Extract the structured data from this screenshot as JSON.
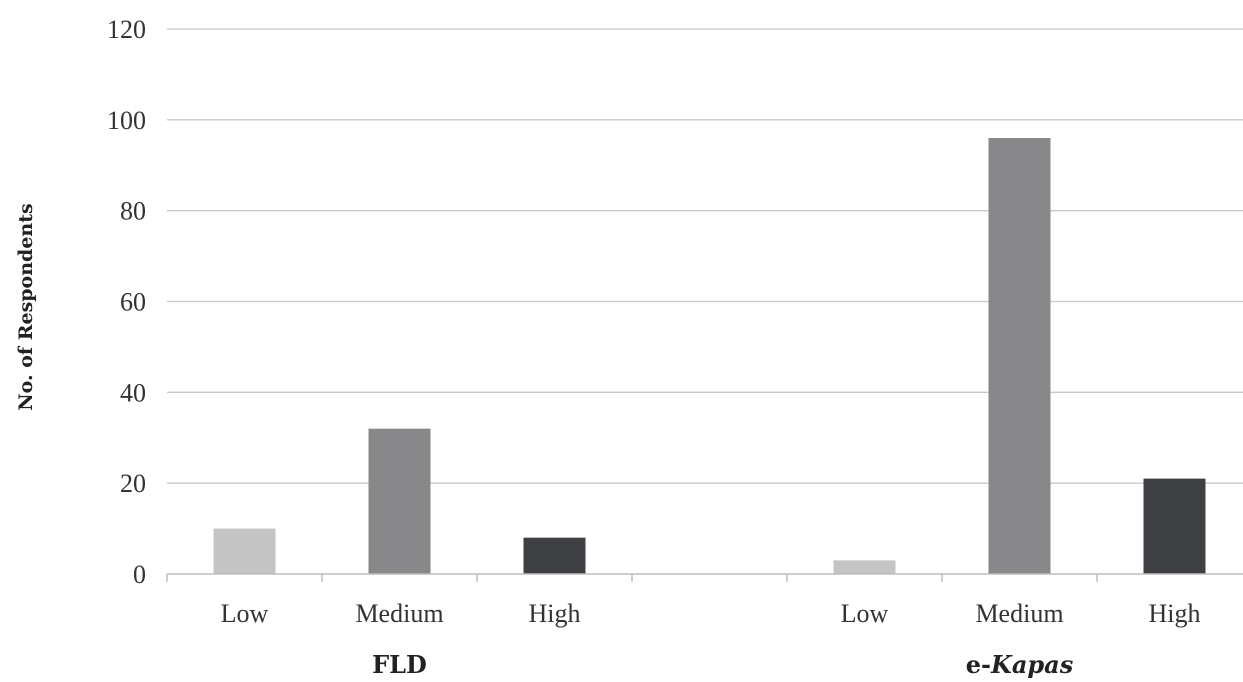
{
  "chart_data": {
    "type": "bar",
    "ylabel": "No. of Respondents",
    "ylim": [
      0,
      120
    ],
    "yticks": [
      0,
      20,
      40,
      60,
      80,
      100,
      120
    ],
    "grid": true,
    "groups": [
      {
        "label_parts": [
          {
            "text": "FLD",
            "italic": false
          }
        ],
        "categories": [
          "Low",
          "Medium",
          "High"
        ],
        "values": [
          10,
          32,
          8
        ]
      },
      {
        "label_parts": [
          {
            "text": "e-",
            "italic": false
          },
          {
            "text": "Kapas",
            "italic": true
          }
        ],
        "categories": [
          "Low",
          "Medium",
          "High"
        ],
        "values": [
          3,
          96,
          21
        ]
      }
    ],
    "category_colors": [
      "#c4c4c4",
      "#88878a",
      "#3f4043"
    ]
  }
}
